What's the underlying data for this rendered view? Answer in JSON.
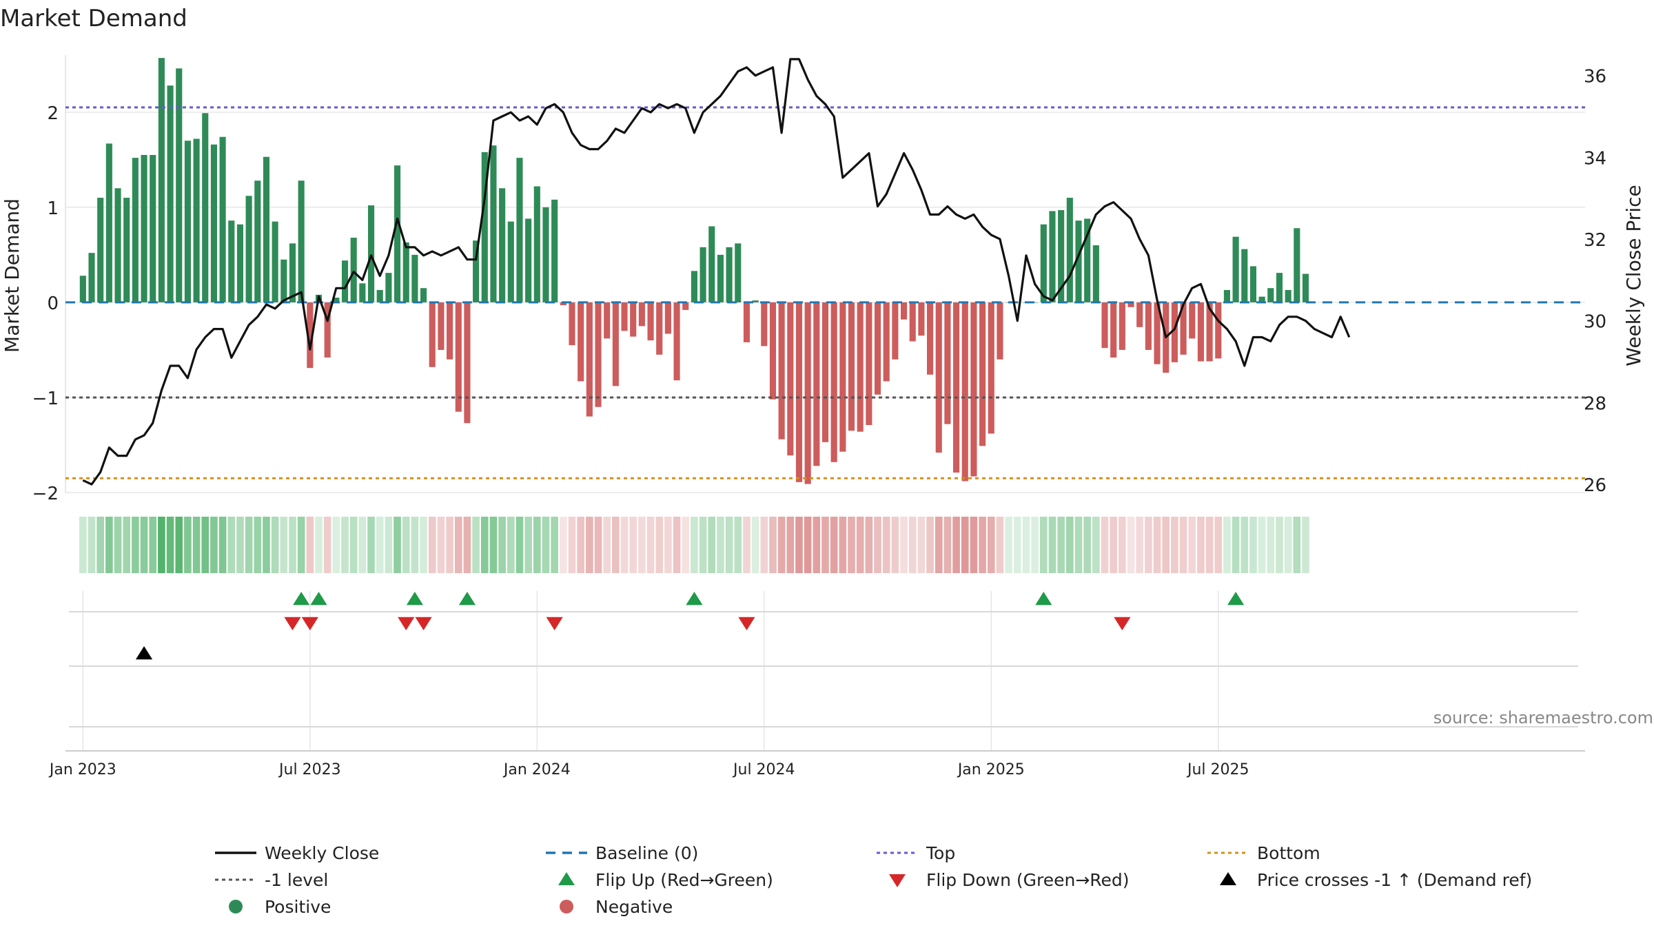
{
  "colors": {
    "positive": "#2e8b57",
    "negative": "#cd5c5c",
    "close": "#111111",
    "baseline": "#1f77b4",
    "top": "#6a5acd",
    "bottom": "#d4901c",
    "minus1": "#555555",
    "flip_up": "#1f9a48",
    "flip_down": "#d62728",
    "cross": "#000000",
    "heat_pos": "#3aa856",
    "heat_neg": "#d06a6a",
    "grid": "#e6e6e6",
    "source": "#888888"
  },
  "chart_data": {
    "type": "bar",
    "title": "Market Demand",
    "ylabel": "Market Demand",
    "y2label": "Weekly Close Price",
    "ylim": [
      -2.0,
      2.6
    ],
    "y2lim": [
      25.8,
      36.5
    ],
    "yticks": [
      2,
      1,
      0,
      -1,
      -2
    ],
    "ytick_labels": [
      "2",
      "1",
      "0",
      "−1",
      "−2"
    ],
    "y2ticks": [
      36,
      34,
      32,
      30,
      28,
      26
    ],
    "y2tick_labels": [
      "36",
      "34",
      "32",
      "30",
      "28",
      "26"
    ],
    "xlim": [
      -2,
      172
    ],
    "xticks": [
      0,
      26,
      52,
      78,
      104,
      130
    ],
    "xtick_labels": [
      "Jan 2023",
      "Jul 2023",
      "Jan 2024",
      "Jul 2024",
      "Jan 2025",
      "Jul 2025"
    ],
    "levels": {
      "top": 2.05,
      "bottom": -1.85,
      "minus1": -1.0,
      "baseline": 0
    },
    "demand": [
      0.28,
      0.52,
      1.1,
      1.67,
      1.2,
      1.1,
      1.52,
      1.55,
      1.55,
      2.57,
      2.28,
      2.46,
      1.7,
      1.72,
      1.99,
      1.66,
      1.74,
      0.86,
      0.82,
      1.12,
      1.28,
      1.53,
      0.85,
      0.45,
      0.62,
      1.28,
      -0.69,
      0.08,
      -0.58,
      0.05,
      0.44,
      0.68,
      0.2,
      1.02,
      0.13,
      0.31,
      1.44,
      0.63,
      0.5,
      0.15,
      -0.68,
      -0.5,
      -0.6,
      -1.15,
      -1.27,
      0.65,
      1.58,
      1.65,
      1.2,
      0.85,
      1.52,
      0.88,
      1.22,
      1.0,
      1.08,
      -0.03,
      -0.45,
      -0.83,
      -1.2,
      -1.1,
      -0.38,
      -0.88,
      -0.3,
      -0.36,
      -0.25,
      -0.4,
      -0.55,
      -0.33,
      -0.82,
      -0.08,
      0.33,
      0.58,
      0.8,
      0.5,
      0.58,
      0.62,
      -0.42,
      0.02,
      -0.46,
      -1.02,
      -1.44,
      -1.61,
      -1.89,
      -1.91,
      -1.72,
      -1.47,
      -1.68,
      -1.57,
      -1.35,
      -1.36,
      -1.29,
      -0.97,
      -0.83,
      -0.6,
      -0.18,
      -0.41,
      -0.35,
      -0.76,
      -1.58,
      -1.28,
      -1.79,
      -1.88,
      -1.83,
      -1.51,
      -1.38,
      -0.6,
      0.0,
      0.0,
      0.0,
      0.0,
      0.82,
      0.96,
      0.97,
      1.1,
      0.86,
      0.88,
      0.6,
      -0.48,
      -0.58,
      -0.5,
      -0.05,
      -0.26,
      -0.5,
      -0.65,
      -0.74,
      -0.63,
      -0.55,
      -0.38,
      -0.62,
      -0.62,
      -0.59,
      0.13,
      0.69,
      0.56,
      0.38,
      0.06,
      0.15,
      0.31,
      0.13,
      0.78,
      0.3
    ],
    "close": [
      26.1,
      26.0,
      26.3,
      26.9,
      26.7,
      26.7,
      27.1,
      27.2,
      27.5,
      28.3,
      28.9,
      28.9,
      28.6,
      29.3,
      29.6,
      29.8,
      29.8,
      29.1,
      29.5,
      29.9,
      30.1,
      30.4,
      30.3,
      30.5,
      30.6,
      30.7,
      29.3,
      30.6,
      30.0,
      30.8,
      30.8,
      31.2,
      31.0,
      31.6,
      31.1,
      31.6,
      32.5,
      31.8,
      31.8,
      31.6,
      31.7,
      31.6,
      31.7,
      31.8,
      31.5,
      31.5,
      33.0,
      34.9,
      35.0,
      35.1,
      34.9,
      35.0,
      34.8,
      35.2,
      35.3,
      35.1,
      34.6,
      34.3,
      34.2,
      34.2,
      34.4,
      34.7,
      34.6,
      34.9,
      35.2,
      35.1,
      35.3,
      35.2,
      35.3,
      35.2,
      34.6,
      35.1,
      35.3,
      35.5,
      35.8,
      36.1,
      36.2,
      36.0,
      36.1,
      36.2,
      34.6,
      36.4,
      36.4,
      35.9,
      35.5,
      35.3,
      35.0,
      33.5,
      33.7,
      33.9,
      34.1,
      32.8,
      33.1,
      33.6,
      34.1,
      33.7,
      33.2,
      32.6,
      32.6,
      32.8,
      32.6,
      32.5,
      32.6,
      32.3,
      32.1,
      32.0,
      31.1,
      30.0,
      31.6,
      30.9,
      30.6,
      30.5,
      30.8,
      31.1,
      31.6,
      32.1,
      32.6,
      32.8,
      32.9,
      32.7,
      32.5,
      32.0,
      31.6,
      30.5,
      29.6,
      29.8,
      30.4,
      30.8,
      30.9,
      30.3,
      30.0,
      29.8,
      29.5,
      28.9,
      29.6,
      29.6,
      29.5,
      29.9,
      30.1,
      30.1,
      30.0,
      29.8,
      29.7,
      29.6,
      30.1,
      29.6
    ],
    "flip_up": [
      25,
      27,
      38,
      44,
      70,
      110,
      132
    ],
    "flip_down": [
      24,
      26,
      37,
      39,
      54,
      76,
      119
    ],
    "price_cross": [
      7
    ]
  },
  "legend": [
    {
      "label": "Weekly Close",
      "kind": "line-solid",
      "color_key": "close"
    },
    {
      "label": "Baseline (0)",
      "kind": "line-dash",
      "color_key": "baseline"
    },
    {
      "label": "Top",
      "kind": "line-dot",
      "color_key": "top"
    },
    {
      "label": "Bottom",
      "kind": "line-dot",
      "color_key": "bottom"
    },
    {
      "label": "-1 level",
      "kind": "line-dot",
      "color_key": "minus1"
    },
    {
      "label": "Flip Up (Red→Green)",
      "kind": "tri-up",
      "color_key": "flip_up"
    },
    {
      "label": "Flip Down (Green→Red)",
      "kind": "tri-down",
      "color_key": "flip_down"
    },
    {
      "label": "Price crosses -1 ↑ (Demand ref)",
      "kind": "tri-up",
      "color_key": "cross"
    },
    {
      "label": "Positive",
      "kind": "dot",
      "color_key": "positive"
    },
    {
      "label": "Negative",
      "kind": "dot",
      "color_key": "negative"
    }
  ],
  "source": "source: sharemaestro.com"
}
